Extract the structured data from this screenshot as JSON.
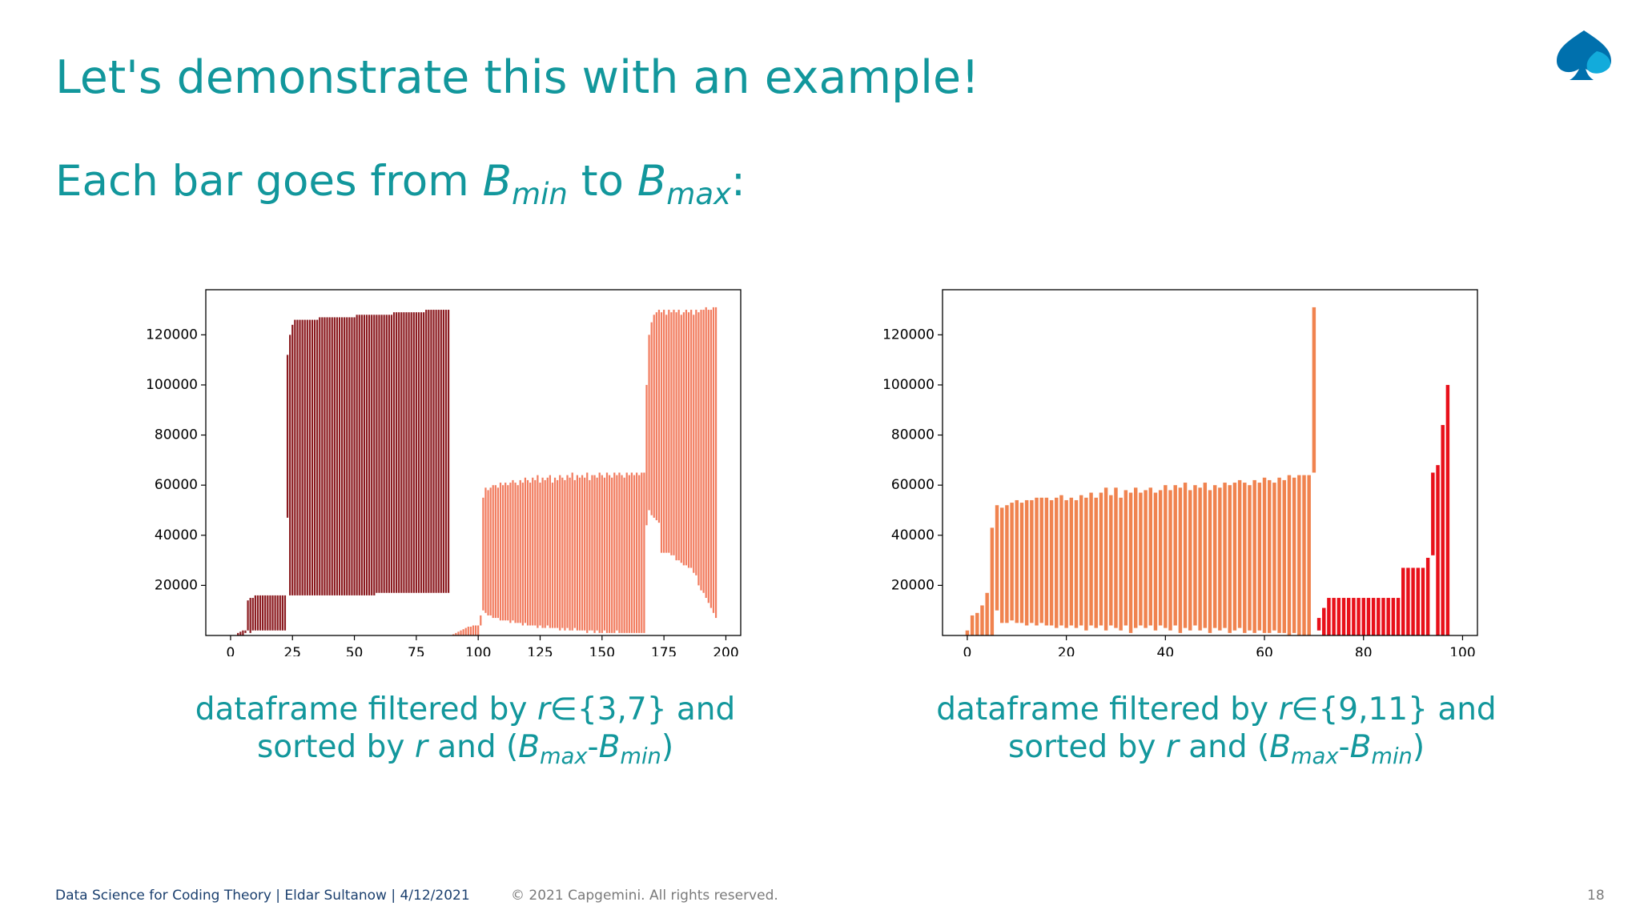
{
  "slide": {
    "title": "Let's demonstrate this with an example!",
    "subtitle": {
      "lead": "Each bar goes from ",
      "b1": "B",
      "min": "min",
      "mid": " to ",
      "b2": "B",
      "max": "max",
      "end": ":"
    },
    "footer": {
      "left": "Data Science for Coding Theory | Eldar Sultanow | 4/12/2021",
      "copyright": "© 2021 Capgemini. All rights reserved.",
      "page": "18"
    }
  },
  "chart_data": [
    {
      "type": "floating-bar",
      "xlim": [
        -10,
        206
      ],
      "xticks": [
        0,
        25,
        50,
        75,
        100,
        125,
        150,
        175,
        200
      ],
      "ylim": [
        0,
        138000
      ],
      "yticks": [
        20000,
        40000,
        60000,
        80000,
        100000,
        120000
      ],
      "caption": {
        "text1": "dataframe filtered by ",
        "r1": "r",
        "set": "∈{3,7} and",
        "text2": "sorted by ",
        "r2": "r",
        "and": " and (",
        "b1": "B",
        "max": "max",
        "minus": "-",
        "b2": "B",
        "min": "min",
        "close": ")"
      },
      "series": [
        {
          "color": "#8b1a1f",
          "x": [
            3,
            4,
            5,
            6,
            7,
            8,
            9,
            10,
            11,
            12,
            13,
            14,
            15,
            16,
            17,
            18,
            19,
            20,
            21,
            22,
            23,
            24,
            25,
            26,
            27,
            28,
            29,
            30,
            31,
            32,
            33,
            34,
            35,
            36,
            37,
            38,
            39,
            40,
            41,
            42,
            43,
            44,
            45,
            46,
            47,
            48,
            49,
            50,
            51,
            52,
            53,
            54,
            55,
            56,
            57,
            58,
            59,
            60,
            61,
            62,
            63,
            64,
            65,
            66,
            67,
            68,
            69,
            70,
            71,
            72,
            73,
            74,
            75,
            76,
            77,
            78,
            79,
            80,
            81,
            82,
            83,
            84,
            85,
            86,
            87,
            88
          ],
          "low": [
            0,
            0,
            0,
            1000,
            2000,
            1000,
            2000,
            2000,
            2000,
            2000,
            2000,
            2000,
            2000,
            2000,
            2000,
            2000,
            2000,
            2000,
            2000,
            2000,
            47000,
            16000,
            16000,
            16000,
            16000,
            16000,
            16000,
            16000,
            16000,
            16000,
            16000,
            16000,
            16000,
            16000,
            16000,
            16000,
            16000,
            16000,
            16000,
            16000,
            16000,
            16000,
            16000,
            16000,
            16000,
            16000,
            16000,
            16000,
            16000,
            16000,
            16000,
            16000,
            16000,
            16000,
            16000,
            16000,
            17000,
            17000,
            17000,
            17000,
            17000,
            17000,
            17000,
            17000,
            17000,
            17000,
            17000,
            17000,
            17000,
            17000,
            17000,
            17000,
            17000,
            17000,
            17000,
            17000,
            17000,
            17000,
            17000,
            17000,
            17000,
            17000,
            17000,
            17000,
            17000,
            17000
          ],
          "high": [
            1000,
            1500,
            2000,
            2000,
            14000,
            15000,
            15000,
            16000,
            16000,
            16000,
            16000,
            16000,
            16000,
            16000,
            16000,
            16000,
            16000,
            16000,
            16000,
            16000,
            112000,
            120000,
            124000,
            126000,
            126000,
            126000,
            126000,
            126000,
            126000,
            126000,
            126000,
            126000,
            126000,
            127000,
            127000,
            127000,
            127000,
            127000,
            127000,
            127000,
            127000,
            127000,
            127000,
            127000,
            127000,
            127000,
            127000,
            127000,
            128000,
            128000,
            128000,
            128000,
            128000,
            128000,
            128000,
            128000,
            128000,
            128000,
            128000,
            128000,
            128000,
            128000,
            128000,
            129000,
            129000,
            129000,
            129000,
            129000,
            129000,
            129000,
            129000,
            129000,
            129000,
            129000,
            129000,
            129000,
            130000,
            130000,
            130000,
            130000,
            130000,
            130000,
            130000,
            130000,
            130000,
            130000
          ]
        },
        {
          "color": "#f27d60",
          "x": [
            90,
            91,
            92,
            93,
            94,
            95,
            96,
            97,
            98,
            99,
            100,
            101,
            102,
            103,
            104,
            105,
            106,
            107,
            108,
            109,
            110,
            111,
            112,
            113,
            114,
            115,
            116,
            117,
            118,
            119,
            120,
            121,
            122,
            123,
            124,
            125,
            126,
            127,
            128,
            129,
            130,
            131,
            132,
            133,
            134,
            135,
            136,
            137,
            138,
            139,
            140,
            141,
            142,
            143,
            144,
            145,
            146,
            147,
            148,
            149,
            150,
            151,
            152,
            153,
            154,
            155,
            156,
            157,
            158,
            159,
            160,
            161,
            162,
            163,
            164,
            165,
            166,
            167,
            168,
            169,
            170,
            171,
            172,
            173,
            174,
            175,
            176,
            177,
            178,
            179,
            180,
            181,
            182,
            183,
            184,
            185,
            186,
            187,
            188,
            189,
            190,
            191,
            192,
            193,
            194,
            195,
            196
          ],
          "low": [
            0,
            0,
            0,
            0,
            0,
            0,
            0,
            0,
            0,
            0,
            0,
            4000,
            10000,
            9000,
            8000,
            8000,
            7000,
            7000,
            7000,
            6000,
            6000,
            6000,
            6000,
            5000,
            6000,
            5000,
            5000,
            5000,
            4000,
            5000,
            4000,
            4000,
            4000,
            4000,
            3000,
            4000,
            3000,
            3000,
            4000,
            3000,
            3000,
            3000,
            3000,
            2000,
            3000,
            2000,
            3000,
            2000,
            2000,
            3000,
            2000,
            2000,
            2000,
            2000,
            1000,
            2000,
            2000,
            1000,
            2000,
            1000,
            1000,
            2000,
            1000,
            1000,
            1000,
            1000,
            2000,
            1000,
            1000,
            1000,
            1000,
            1000,
            1000,
            1000,
            1000,
            1000,
            1000,
            1000,
            44000,
            50000,
            48000,
            47000,
            46000,
            45000,
            33000,
            33000,
            33000,
            33000,
            32000,
            32000,
            30000,
            30000,
            29000,
            28000,
            28000,
            27000,
            27000,
            25000,
            24000,
            20000,
            18000,
            17000,
            15000,
            13000,
            11000,
            9000,
            7000
          ],
          "high": [
            500,
            1000,
            1500,
            2000,
            2500,
            3000,
            3500,
            3500,
            4000,
            4000,
            4000,
            8000,
            55000,
            59000,
            58000,
            59000,
            60000,
            60000,
            59000,
            61000,
            60000,
            61000,
            60000,
            61000,
            62000,
            61000,
            60000,
            62000,
            61000,
            63000,
            62000,
            61000,
            63000,
            62000,
            64000,
            61000,
            63000,
            62000,
            63000,
            64000,
            61000,
            63000,
            62000,
            64000,
            63000,
            62000,
            64000,
            63000,
            65000,
            62000,
            64000,
            63000,
            64000,
            63000,
            65000,
            62000,
            64000,
            64000,
            63000,
            65000,
            64000,
            63000,
            65000,
            64000,
            63000,
            65000,
            64000,
            65000,
            64000,
            63000,
            65000,
            64000,
            65000,
            64000,
            65000,
            64000,
            65000,
            65000,
            100000,
            120000,
            125000,
            128000,
            129000,
            130000,
            129000,
            130000,
            128000,
            130000,
            129000,
            130000,
            129000,
            130000,
            128000,
            129000,
            130000,
            129000,
            130000,
            128000,
            130000,
            129000,
            130000,
            130000,
            131000,
            130000,
            130000,
            131000,
            131000
          ]
        }
      ]
    },
    {
      "type": "floating-bar",
      "xlim": [
        -5,
        103
      ],
      "xticks": [
        0,
        20,
        40,
        60,
        80,
        100
      ],
      "ylim": [
        0,
        138000
      ],
      "yticks": [
        20000,
        40000,
        60000,
        80000,
        100000,
        120000
      ],
      "caption": {
        "text1": "dataframe filtered by ",
        "r1": "r",
        "set": "∈{9,11} and",
        "text2": "sorted by ",
        "r2": "r",
        "and": " and (",
        "b1": "B",
        "max": "max",
        "minus": "-",
        "b2": "B",
        "min": "min",
        "close": ")"
      },
      "series": [
        {
          "color": "#f0834f",
          "x": [
            0,
            1,
            2,
            3,
            4,
            5,
            6,
            7,
            8,
            9,
            10,
            11,
            12,
            13,
            14,
            15,
            16,
            17,
            18,
            19,
            20,
            21,
            22,
            23,
            24,
            25,
            26,
            27,
            28,
            29,
            30,
            31,
            32,
            33,
            34,
            35,
            36,
            37,
            38,
            39,
            40,
            41,
            42,
            43,
            44,
            45,
            46,
            47,
            48,
            49,
            50,
            51,
            52,
            53,
            54,
            55,
            56,
            57,
            58,
            59,
            60,
            61,
            62,
            63,
            64,
            65,
            66,
            67,
            68,
            69,
            70
          ],
          "low": [
            0,
            0,
            0,
            0,
            0,
            0,
            10000,
            5000,
            5000,
            6000,
            5000,
            5000,
            4000,
            5000,
            4000,
            5000,
            4000,
            4000,
            3000,
            4000,
            3000,
            4000,
            3000,
            4000,
            2000,
            4000,
            3000,
            4000,
            2000,
            4000,
            3000,
            2000,
            4000,
            1000,
            3000,
            4000,
            3000,
            4000,
            2000,
            4000,
            3000,
            2000,
            4000,
            1000,
            3000,
            2000,
            4000,
            2000,
            3000,
            1000,
            3000,
            2000,
            3000,
            1000,
            2000,
            3000,
            1000,
            2000,
            1000,
            2000,
            1000,
            1000,
            2000,
            1000,
            1000,
            0,
            1000,
            0,
            0,
            0,
            65000
          ],
          "high": [
            2000,
            8000,
            9000,
            12000,
            17000,
            43000,
            52000,
            51000,
            52000,
            53000,
            54000,
            53000,
            54000,
            54000,
            55000,
            55000,
            55000,
            54000,
            55000,
            56000,
            54000,
            55000,
            54000,
            56000,
            55000,
            57000,
            55000,
            57000,
            59000,
            56000,
            59000,
            55000,
            58000,
            57000,
            59000,
            57000,
            58000,
            59000,
            57000,
            58000,
            60000,
            58000,
            60000,
            59000,
            61000,
            58000,
            60000,
            59000,
            61000,
            58000,
            60000,
            59000,
            61000,
            60000,
            61000,
            62000,
            61000,
            60000,
            62000,
            61000,
            63000,
            62000,
            61000,
            63000,
            62000,
            64000,
            63000,
            64000,
            64000,
            64000,
            131000
          ]
        },
        {
          "color": "#e8101a",
          "x": [
            71,
            72,
            73,
            74,
            75,
            76,
            77,
            78,
            79,
            80,
            81,
            82,
            83,
            84,
            85,
            86,
            87,
            88,
            89,
            90,
            91,
            92,
            93,
            94,
            95,
            96,
            97
          ],
          "low": [
            2000,
            0,
            0,
            0,
            0,
            0,
            0,
            0,
            0,
            0,
            0,
            0,
            0,
            0,
            0,
            0,
            0,
            0,
            0,
            0,
            0,
            0,
            0,
            32000,
            0,
            0,
            0
          ],
          "high": [
            7000,
            11000,
            15000,
            15000,
            15000,
            15000,
            15000,
            15000,
            15000,
            15000,
            15000,
            15000,
            15000,
            15000,
            15000,
            15000,
            15000,
            27000,
            27000,
            27000,
            27000,
            27000,
            31000,
            65000,
            68000,
            84000,
            100000
          ]
        }
      ]
    }
  ]
}
